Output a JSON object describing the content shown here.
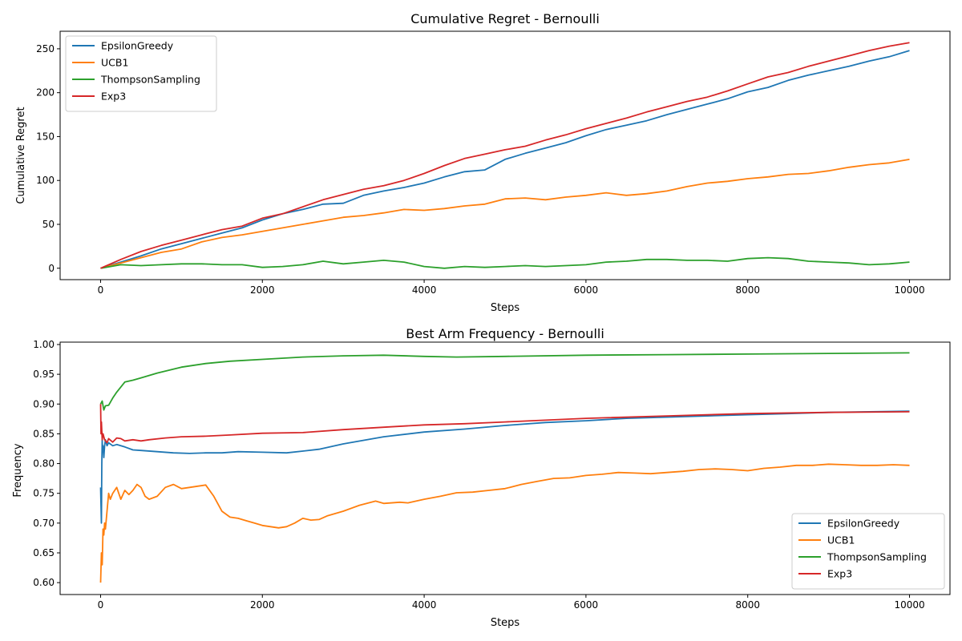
{
  "chart_data": [
    {
      "type": "line",
      "title": "Cumulative Regret - Bernoulli",
      "xlabel": "Steps",
      "ylabel": "Cumulative Regret",
      "xlim": [
        -500,
        10500
      ],
      "ylim": [
        -13,
        270
      ],
      "xticks": [
        0,
        2000,
        4000,
        6000,
        8000,
        10000
      ],
      "yticks": [
        0,
        50,
        100,
        150,
        200,
        250
      ],
      "grid": false,
      "legend_position": "upper-left",
      "series": [
        {
          "name": "EpsilonGreedy",
          "color": "#1f77b4",
          "x": [
            0,
            250,
            500,
            750,
            1000,
            1250,
            1500,
            1750,
            2000,
            2250,
            2500,
            2750,
            3000,
            3250,
            3500,
            3750,
            4000,
            4250,
            4500,
            4750,
            5000,
            5250,
            5500,
            5750,
            6000,
            6250,
            6500,
            6750,
            7000,
            7250,
            7500,
            7750,
            8000,
            8250,
            8500,
            8750,
            9000,
            9250,
            9500,
            9750,
            10000
          ],
          "y": [
            0,
            7,
            14,
            22,
            28,
            34,
            40,
            46,
            55,
            62,
            67,
            73,
            74,
            83,
            88,
            92,
            97,
            104,
            110,
            112,
            124,
            131,
            137,
            143,
            151,
            158,
            163,
            168,
            175,
            181,
            187,
            193,
            201,
            206,
            214,
            220,
            225,
            230,
            236,
            241,
            248
          ]
        },
        {
          "name": "UCB1",
          "color": "#ff7f0e",
          "x": [
            0,
            250,
            500,
            750,
            1000,
            1250,
            1500,
            1750,
            2000,
            2250,
            2500,
            2750,
            3000,
            3250,
            3500,
            3750,
            4000,
            4250,
            4500,
            4750,
            5000,
            5250,
            5500,
            5750,
            6000,
            6250,
            6500,
            6750,
            7000,
            7250,
            7500,
            7750,
            8000,
            8250,
            8500,
            8750,
            9000,
            9250,
            9500,
            9750,
            10000
          ],
          "y": [
            0,
            6,
            12,
            18,
            22,
            30,
            35,
            38,
            42,
            46,
            50,
            54,
            58,
            60,
            63,
            67,
            66,
            68,
            71,
            73,
            79,
            80,
            78,
            81,
            83,
            86,
            83,
            85,
            88,
            93,
            97,
            99,
            102,
            104,
            107,
            108,
            111,
            115,
            118,
            120,
            124
          ]
        },
        {
          "name": "ThompsonSampling",
          "color": "#2ca02c",
          "x": [
            0,
            250,
            500,
            750,
            1000,
            1250,
            1500,
            1750,
            2000,
            2250,
            2500,
            2750,
            3000,
            3250,
            3500,
            3750,
            4000,
            4250,
            4500,
            4750,
            5000,
            5250,
            5500,
            5750,
            6000,
            6250,
            6500,
            6750,
            7000,
            7250,
            7500,
            7750,
            8000,
            8250,
            8500,
            8750,
            9000,
            9250,
            9500,
            9750,
            10000
          ],
          "y": [
            0,
            4,
            3,
            4,
            5,
            5,
            4,
            4,
            1,
            2,
            4,
            8,
            5,
            7,
            9,
            7,
            2,
            0,
            2,
            1,
            2,
            3,
            2,
            3,
            4,
            7,
            8,
            10,
            10,
            9,
            9,
            8,
            11,
            12,
            11,
            8,
            7,
            6,
            4,
            5,
            7
          ]
        },
        {
          "name": "Exp3",
          "color": "#d62728",
          "x": [
            0,
            250,
            500,
            750,
            1000,
            1250,
            1500,
            1750,
            2000,
            2250,
            2500,
            2750,
            3000,
            3250,
            3500,
            3750,
            4000,
            4250,
            4500,
            4750,
            5000,
            5250,
            5500,
            5750,
            6000,
            6250,
            6500,
            6750,
            7000,
            7250,
            7500,
            7750,
            8000,
            8250,
            8500,
            8750,
            9000,
            9250,
            9500,
            9750,
            10000
          ],
          "y": [
            0,
            10,
            19,
            26,
            32,
            38,
            44,
            48,
            57,
            62,
            70,
            78,
            84,
            90,
            94,
            100,
            108,
            117,
            125,
            130,
            135,
            139,
            146,
            152,
            159,
            165,
            171,
            178,
            184,
            190,
            195,
            202,
            210,
            218,
            223,
            230,
            236,
            242,
            248,
            253,
            257
          ]
        }
      ]
    },
    {
      "type": "line",
      "title": "Best Arm Frequency - Bernoulli",
      "xlabel": "Steps",
      "ylabel": "Frequency",
      "xlim": [
        -500,
        10500
      ],
      "ylim": [
        0.58,
        1.004
      ],
      "xticks": [
        0,
        2000,
        4000,
        6000,
        8000,
        10000
      ],
      "yticks": [
        0.6,
        0.65,
        0.7,
        0.75,
        0.8,
        0.85,
        0.9,
        0.95,
        1.0
      ],
      "ytick_labels": [
        "0.60",
        "0.65",
        "0.70",
        "0.75",
        "0.80",
        "0.85",
        "0.90",
        "0.95",
        "1.00"
      ],
      "grid": false,
      "legend_position": "lower-right",
      "series": [
        {
          "name": "EpsilonGreedy",
          "color": "#1f77b4",
          "x": [
            0,
            5,
            10,
            15,
            20,
            25,
            30,
            40,
            50,
            60,
            80,
            100,
            150,
            200,
            300,
            400,
            500,
            700,
            900,
            1100,
            1300,
            1500,
            1700,
            2000,
            2300,
            2500,
            2700,
            3000,
            3500,
            4000,
            4500,
            5000,
            5500,
            6000,
            6500,
            7000,
            7500,
            8000,
            8500,
            9000,
            9500,
            10000
          ],
          "y": [
            0.76,
            0.73,
            0.7,
            0.8,
            0.84,
            0.82,
            0.83,
            0.81,
            0.83,
            0.84,
            0.83,
            0.835,
            0.83,
            0.832,
            0.828,
            0.823,
            0.822,
            0.82,
            0.818,
            0.817,
            0.818,
            0.818,
            0.82,
            0.819,
            0.818,
            0.821,
            0.824,
            0.833,
            0.845,
            0.853,
            0.858,
            0.864,
            0.869,
            0.872,
            0.876,
            0.878,
            0.88,
            0.882,
            0.884,
            0.886,
            0.887,
            0.888
          ]
        },
        {
          "name": "UCB1",
          "color": "#ff7f0e",
          "x": [
            0,
            10,
            20,
            30,
            40,
            50,
            60,
            80,
            100,
            120,
            150,
            200,
            250,
            300,
            350,
            400,
            450,
            500,
            550,
            600,
            700,
            800,
            900,
            1000,
            1100,
            1200,
            1300,
            1400,
            1500,
            1600,
            1700,
            1800,
            1900,
            2000,
            2100,
            2200,
            2300,
            2400,
            2500,
            2600,
            2700,
            2800,
            3000,
            3200,
            3400,
            3500,
            3700,
            3800,
            4000,
            4200,
            4400,
            4600,
            4800,
            5000,
            5200,
            5400,
            5600,
            5800,
            6000,
            6200,
            6400,
            6600,
            6800,
            7000,
            7200,
            7400,
            7600,
            7800,
            8000,
            8200,
            8400,
            8600,
            8800,
            9000,
            9200,
            9400,
            9600,
            9800,
            10000
          ],
          "y": [
            0.6,
            0.65,
            0.63,
            0.69,
            0.68,
            0.7,
            0.69,
            0.72,
            0.75,
            0.74,
            0.75,
            0.76,
            0.74,
            0.755,
            0.748,
            0.755,
            0.765,
            0.76,
            0.745,
            0.74,
            0.745,
            0.76,
            0.765,
            0.758,
            0.76,
            0.762,
            0.764,
            0.745,
            0.72,
            0.71,
            0.708,
            0.704,
            0.7,
            0.696,
            0.694,
            0.692,
            0.694,
            0.7,
            0.708,
            0.705,
            0.706,
            0.712,
            0.72,
            0.73,
            0.737,
            0.733,
            0.735,
            0.734,
            0.74,
            0.745,
            0.751,
            0.752,
            0.755,
            0.758,
            0.765,
            0.77,
            0.775,
            0.776,
            0.78,
            0.782,
            0.785,
            0.784,
            0.783,
            0.785,
            0.787,
            0.79,
            0.791,
            0.79,
            0.788,
            0.792,
            0.794,
            0.797,
            0.797,
            0.799,
            0.798,
            0.797,
            0.797,
            0.798,
            0.797
          ]
        },
        {
          "name": "ThompsonSampling",
          "color": "#2ca02c",
          "x": [
            0,
            20,
            40,
            60,
            100,
            150,
            200,
            300,
            400,
            500,
            700,
            1000,
            1300,
            1600,
            2000,
            2500,
            3000,
            3500,
            4000,
            4400,
            5000,
            6000,
            7000,
            8000,
            9000,
            10000
          ],
          "y": [
            0.9,
            0.905,
            0.89,
            0.897,
            0.898,
            0.91,
            0.92,
            0.937,
            0.94,
            0.944,
            0.952,
            0.962,
            0.968,
            0.972,
            0.975,
            0.979,
            0.981,
            0.982,
            0.98,
            0.979,
            0.98,
            0.982,
            0.983,
            0.984,
            0.985,
            0.986
          ]
        },
        {
          "name": "Exp3",
          "color": "#d62728",
          "x": [
            0,
            5,
            10,
            20,
            30,
            50,
            80,
            100,
            150,
            200,
            250,
            300,
            400,
            500,
            600,
            800,
            1000,
            1300,
            1600,
            2000,
            2500,
            3000,
            3500,
            4000,
            4500,
            5000,
            6000,
            7000,
            8000,
            9000,
            10000
          ],
          "y": [
            0.9,
            0.85,
            0.87,
            0.84,
            0.85,
            0.84,
            0.835,
            0.842,
            0.836,
            0.843,
            0.842,
            0.838,
            0.84,
            0.838,
            0.84,
            0.843,
            0.845,
            0.846,
            0.848,
            0.851,
            0.852,
            0.857,
            0.861,
            0.865,
            0.867,
            0.87,
            0.876,
            0.88,
            0.884,
            0.886,
            0.887
          ]
        }
      ]
    }
  ]
}
